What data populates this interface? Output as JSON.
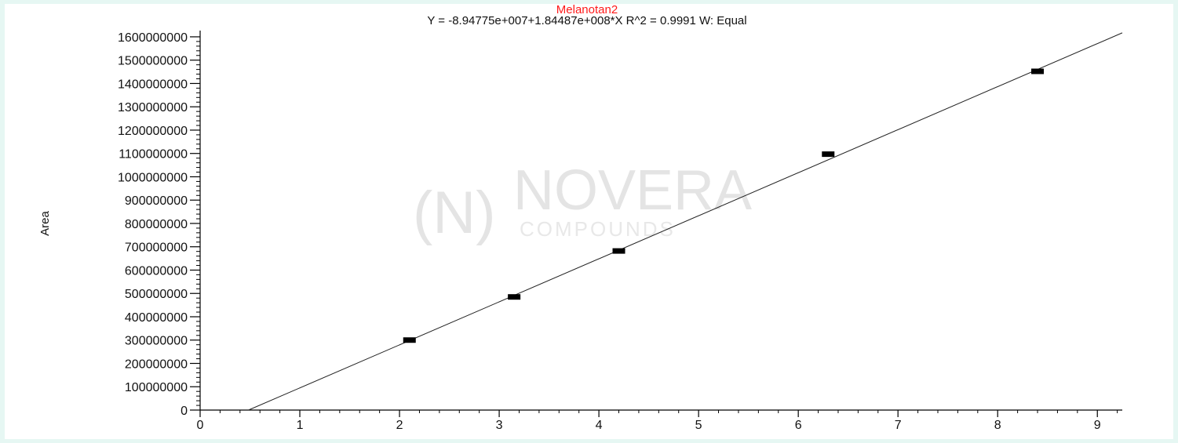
{
  "chart_data": {
    "type": "scatter",
    "title": "Melanotan2",
    "subtitle": "Y = -8.94775e+007+1.84487e+008*X   R^2 = 0.9991   W: Equal",
    "xlabel": "",
    "ylabel": "Area",
    "xlim": [
      0,
      9.25
    ],
    "ylim": [
      0,
      1620000000
    ],
    "x_ticks": [
      "0",
      "1",
      "2",
      "3",
      "4",
      "5",
      "6",
      "7",
      "8",
      "9"
    ],
    "y_ticks": [
      "0",
      "100000000",
      "200000000",
      "300000000",
      "400000000",
      "500000000",
      "600000000",
      "700000000",
      "800000000",
      "900000000",
      "1000000000",
      "1100000000",
      "1200000000",
      "1300000000",
      "1400000000",
      "1500000000",
      "1600000000"
    ],
    "series": [
      {
        "x": [
          2.1,
          3.15,
          4.2,
          6.3,
          8.4
        ],
        "y": [
          300000000,
          485000000,
          682000000,
          1097000000,
          1452000000
        ]
      }
    ],
    "fit": {
      "intercept": -89477500,
      "slope": 184487000,
      "x_range": [
        0.485,
        9.25
      ]
    },
    "grid": false,
    "legend": "none",
    "colors": {
      "title": "#ff1a1a",
      "marks": "#000000",
      "axis": "#000000"
    }
  },
  "watermark": {
    "mark": "(N)",
    "name": "NOVERA",
    "sub": "COMPOUNDS"
  }
}
